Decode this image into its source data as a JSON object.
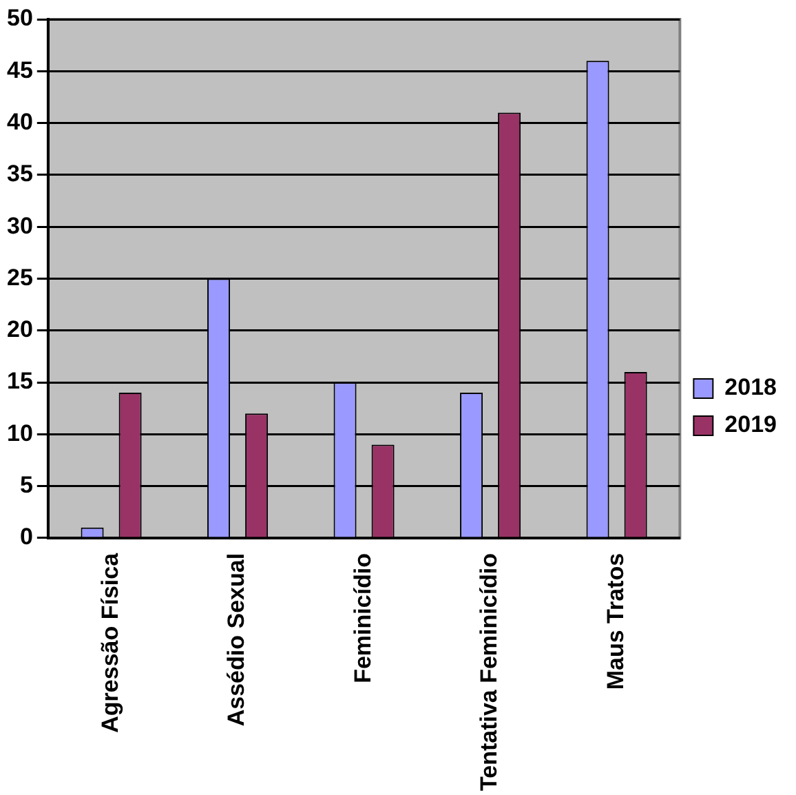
{
  "chart_data": {
    "type": "bar",
    "categories": [
      "Agressão Física",
      "Assédio Sexual",
      "Feminicídio",
      "Tentativa Feminicídio",
      "Maus Tratos"
    ],
    "series": [
      {
        "name": "2018",
        "color": "#9999ff",
        "values": [
          1,
          25,
          15,
          14,
          46
        ]
      },
      {
        "name": "2019",
        "color": "#993366",
        "values": [
          14,
          12,
          9,
          41,
          16
        ]
      }
    ],
    "ylim": [
      0,
      50
    ],
    "yticks": [
      0,
      5,
      10,
      15,
      20,
      25,
      30,
      35,
      40,
      45,
      50
    ],
    "grid": "y",
    "legend": "right"
  }
}
